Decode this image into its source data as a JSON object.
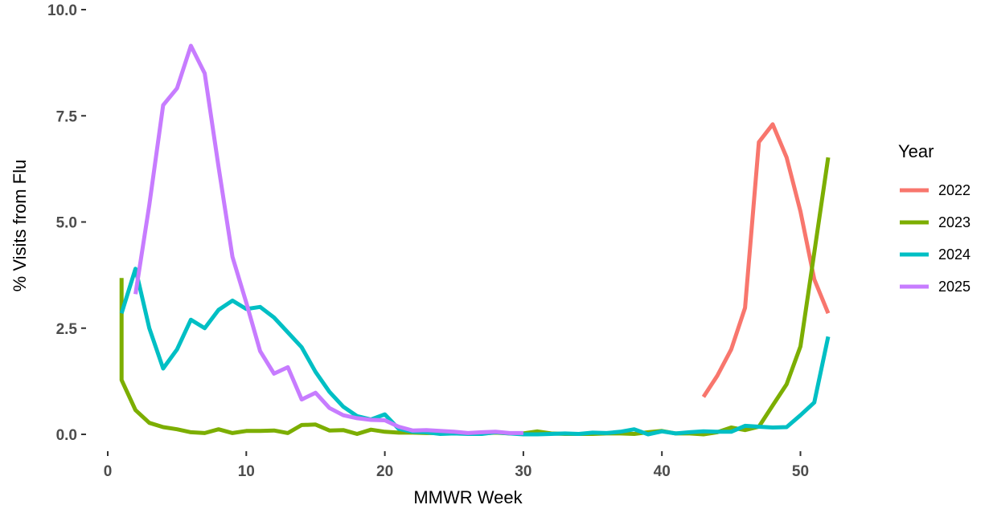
{
  "chart_data": {
    "type": "line",
    "title": "",
    "xlabel": "MMWR Week",
    "ylabel": "% Visits from Flu",
    "xlim": [
      -1,
      54
    ],
    "ylim": [
      -0.3,
      10
    ],
    "x_ticks": [
      0,
      10,
      20,
      30,
      40,
      50
    ],
    "x_tick_labels": [
      "0",
      "10",
      "20",
      "30",
      "40",
      "50"
    ],
    "y_ticks": [
      0,
      2.5,
      5,
      7.5,
      10
    ],
    "y_tick_labels": [
      "0.0",
      "2.5",
      "5.0",
      "7.5",
      "10.0"
    ],
    "grid": false,
    "legend": {
      "title": "Year",
      "position": "right",
      "entries": [
        "2022",
        "2023",
        "2024",
        "2025"
      ]
    },
    "series": [
      {
        "name": "2022",
        "color": "#F8766D",
        "x": [
          43,
          44,
          45,
          46,
          47,
          48,
          49,
          50,
          51,
          52
        ],
        "y": [
          0.88,
          1.38,
          2.0,
          2.98,
          6.88,
          7.3,
          6.52,
          5.25,
          3.65,
          2.85
        ]
      },
      {
        "name": "2023",
        "color": "#7CAE00",
        "x": [
          1,
          1,
          2,
          3,
          4,
          5,
          6,
          7,
          8,
          9,
          10,
          11,
          12,
          13,
          14,
          15,
          16,
          17,
          18,
          19,
          20,
          21,
          22,
          23,
          24,
          25,
          26,
          27,
          28,
          29,
          30,
          31,
          32,
          33,
          34,
          35,
          36,
          37,
          38,
          39,
          40,
          41,
          42,
          43,
          44,
          45,
          46,
          47,
          48,
          49,
          50,
          51,
          52
        ],
        "y": [
          3.68,
          1.28,
          0.57,
          0.27,
          0.17,
          0.12,
          0.05,
          0.03,
          0.12,
          0.03,
          0.08,
          0.08,
          0.09,
          0.03,
          0.22,
          0.23,
          0.09,
          0.1,
          0.01,
          0.11,
          0.06,
          0.04,
          0.04,
          0.03,
          0.03,
          0.03,
          0.02,
          0.02,
          0.04,
          0.02,
          0.02,
          0.07,
          0.02,
          0.01,
          0.01,
          0.01,
          0.02,
          0.02,
          0.01,
          0.05,
          0.08,
          0.02,
          0.02,
          0.0,
          0.05,
          0.16,
          0.1,
          0.18,
          0.68,
          1.18,
          2.07,
          4.28,
          6.52
        ]
      },
      {
        "name": "2024",
        "color": "#00BFC4",
        "x": [
          1,
          2,
          3,
          4,
          5,
          6,
          7,
          8,
          9,
          10,
          11,
          12,
          13,
          14,
          15,
          16,
          17,
          18,
          19,
          20,
          21,
          22,
          23,
          24,
          25,
          26,
          27,
          28,
          29,
          30,
          31,
          32,
          33,
          34,
          35,
          36,
          37,
          38,
          39,
          40,
          41,
          42,
          43,
          44,
          45,
          46,
          47,
          48,
          49,
          50,
          51,
          52
        ],
        "y": [
          2.85,
          3.9,
          2.5,
          1.55,
          2.0,
          2.7,
          2.5,
          2.93,
          3.15,
          2.95,
          3.0,
          2.75,
          2.4,
          2.05,
          1.47,
          1.0,
          0.65,
          0.43,
          0.35,
          0.47,
          0.13,
          0.06,
          0.05,
          0.01,
          0.02,
          0.01,
          0.01,
          0.05,
          0.02,
          0.0,
          0.0,
          0.01,
          0.02,
          0.01,
          0.04,
          0.03,
          0.06,
          0.12,
          0.0,
          0.07,
          0.02,
          0.05,
          0.07,
          0.06,
          0.06,
          0.2,
          0.18,
          0.16,
          0.17,
          0.45,
          0.75,
          2.3
        ]
      },
      {
        "name": "2025",
        "color": "#C77CFF",
        "x": [
          2,
          3,
          4,
          5,
          6,
          7,
          8,
          9,
          10,
          11,
          12,
          13,
          14,
          15,
          16,
          17,
          18,
          19,
          20,
          21,
          22,
          23,
          24,
          25,
          26,
          27,
          28,
          29,
          30
        ],
        "y": [
          3.3,
          5.4,
          7.75,
          8.15,
          9.15,
          8.5,
          6.3,
          4.18,
          3.1,
          1.96,
          1.43,
          1.58,
          0.82,
          0.98,
          0.62,
          0.45,
          0.38,
          0.34,
          0.33,
          0.18,
          0.09,
          0.1,
          0.08,
          0.06,
          0.03,
          0.05,
          0.06,
          0.03,
          0.03
        ]
      }
    ]
  }
}
